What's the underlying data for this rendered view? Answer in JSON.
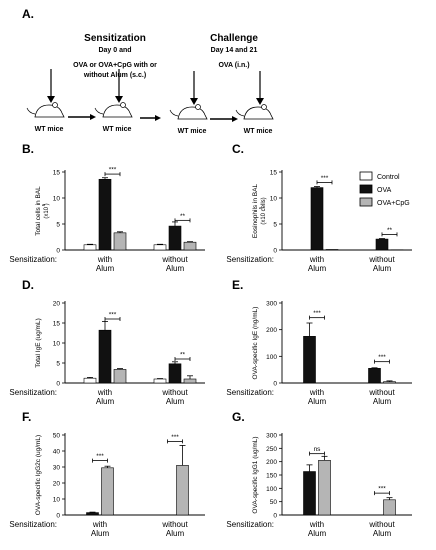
{
  "figure": {
    "panel_labels": [
      "A.",
      "B.",
      "C.",
      "D.",
      "E.",
      "F.",
      "G."
    ],
    "schedule": {
      "sensitization_title": "Sensitization",
      "sensitization_days": "Day 0 and",
      "sensitization_desc_line1": "OVA or OVA+CpG with or",
      "sensitization_desc_line2": "without Alum (s.c.)",
      "challenge_title": "Challenge",
      "challenge_days": "Day 14 and 21",
      "challenge_desc": "OVA (i.n.)",
      "mouse_label": "WT mice"
    },
    "row_label": "Sensitization:",
    "group_labels": [
      [
        "with",
        "Alum"
      ],
      [
        "without",
        "Alum"
      ]
    ],
    "legend": [
      {
        "label": "Control",
        "color": "#ffffff"
      },
      {
        "label": "OVA",
        "color": "#111111"
      },
      {
        "label": "OVA+CpG",
        "color": "#b5b5b5"
      }
    ]
  },
  "chart_data": [
    {
      "panel": "B.",
      "type": "bar",
      "ylabel": "Total cells in  BAL",
      "yunit": "(x10 )",
      "ylim": [
        0,
        15
      ],
      "yticks": [
        0,
        5,
        10,
        15
      ],
      "categories": [
        "with Alum",
        "without Alum"
      ],
      "series": [
        {
          "name": "Control",
          "values": [
            1.0,
            1.0
          ],
          "errors": [
            0.1,
            0.1
          ]
        },
        {
          "name": "OVA",
          "values": [
            13.6,
            4.6
          ],
          "errors": [
            0.3,
            0.8
          ]
        },
        {
          "name": "OVA+CpG",
          "values": [
            3.3,
            1.5
          ],
          "errors": [
            0.2,
            0.1
          ]
        }
      ],
      "significance": [
        {
          "group": 0,
          "from": 1,
          "to": 2,
          "label": "***",
          "y": 14.6
        },
        {
          "group": 1,
          "from": 1,
          "to": 2,
          "label": "**",
          "y": 5.7
        }
      ]
    },
    {
      "panel": "C.",
      "type": "bar",
      "ylabel": "Eosinophils in BAL",
      "yunit": "(x10  cells)",
      "ylim": [
        0,
        15
      ],
      "yticks": [
        0,
        5,
        10,
        15
      ],
      "categories": [
        "with Alum",
        "without Alum"
      ],
      "series": [
        {
          "name": "Control",
          "values": [
            0,
            0
          ],
          "errors": [
            0,
            0
          ]
        },
        {
          "name": "OVA",
          "values": [
            12.0,
            2.1
          ],
          "errors": [
            0.2,
            0.1
          ]
        },
        {
          "name": "OVA+CpG",
          "values": [
            0.1,
            0.05
          ],
          "errors": [
            0,
            0
          ]
        }
      ],
      "significance": [
        {
          "group": 0,
          "from": 1,
          "to": 2,
          "label": "***",
          "y": 13.0
        },
        {
          "group": 1,
          "from": 1,
          "to": 2,
          "label": "**",
          "y": 3.0
        }
      ]
    },
    {
      "panel": "D.",
      "type": "bar",
      "ylabel": "Total  IgE (ug/mL)",
      "ylim": [
        0,
        20
      ],
      "yticks": [
        0,
        5,
        10,
        15,
        20
      ],
      "categories": [
        "with Alum",
        "without Alum"
      ],
      "series": [
        {
          "name": "Control",
          "values": [
            1.2,
            1.0
          ],
          "errors": [
            0.2,
            0.1
          ]
        },
        {
          "name": "OVA",
          "values": [
            13.2,
            4.8
          ],
          "errors": [
            2.2,
            0.5
          ]
        },
        {
          "name": "OVA+CpG",
          "values": [
            3.4,
            1.0
          ],
          "errors": [
            0.2,
            0.8
          ]
        }
      ],
      "significance": [
        {
          "group": 0,
          "from": 1,
          "to": 2,
          "label": "***",
          "y": 16.0
        },
        {
          "group": 1,
          "from": 1,
          "to": 2,
          "label": "**",
          "y": 6.0
        }
      ]
    },
    {
      "panel": "E.",
      "type": "bar",
      "ylabel": "OVA-specific IgE (ng/mL)",
      "ylim": [
        0,
        300
      ],
      "yticks": [
        0,
        100,
        200,
        300
      ],
      "categories": [
        "with Alum",
        "without Alum"
      ],
      "series": [
        {
          "name": "OVA",
          "values": [
            175,
            55
          ],
          "errors": [
            50,
            2
          ]
        },
        {
          "name": "OVA+CpG",
          "values": [
            0,
            5
          ],
          "errors": [
            0,
            3
          ]
        }
      ],
      "significance": [
        {
          "group": 0,
          "from": 0,
          "to": 1,
          "label": "***",
          "y": 245
        },
        {
          "group": 1,
          "from": 0,
          "to": 1,
          "label": "***",
          "y": 80
        }
      ]
    },
    {
      "panel": "F.",
      "type": "bar",
      "ylabel": "OVA-specific IgG2c (ug/mL)",
      "ylim": [
        0,
        50
      ],
      "yticks": [
        0,
        10,
        20,
        30,
        40,
        50
      ],
      "categories": [
        "with Alum",
        "without Alum"
      ],
      "series": [
        {
          "name": "OVA",
          "values": [
            1.5,
            0
          ],
          "errors": [
            0.3,
            0
          ]
        },
        {
          "name": "OVA+CpG",
          "values": [
            29.5,
            31.0
          ],
          "errors": [
            1.0,
            12.5
          ]
        }
      ],
      "significance": [
        {
          "group": 0,
          "from": 0,
          "to": 1,
          "label": "***",
          "y": 34
        },
        {
          "group": 1,
          "from": 0,
          "to": 1,
          "label": "***",
          "y": 46
        }
      ]
    },
    {
      "panel": "G.",
      "type": "bar",
      "ylabel": "OVA-specific IgG1 (ug/mL)",
      "ylim": [
        0,
        300
      ],
      "yticks": [
        0,
        50,
        100,
        150,
        200,
        250,
        300
      ],
      "categories": [
        "with Alum",
        "without Alum"
      ],
      "series": [
        {
          "name": "OVA",
          "values": [
            163,
            0
          ],
          "errors": [
            25,
            0
          ]
        },
        {
          "name": "OVA+CpG",
          "values": [
            205,
            57
          ],
          "errors": [
            15,
            8
          ]
        }
      ],
      "significance": [
        {
          "group": 0,
          "from": 0,
          "to": 1,
          "label": "ns",
          "y": 230
        },
        {
          "group": 1,
          "from": 0,
          "to": 1,
          "label": "***",
          "y": 82
        }
      ]
    }
  ]
}
